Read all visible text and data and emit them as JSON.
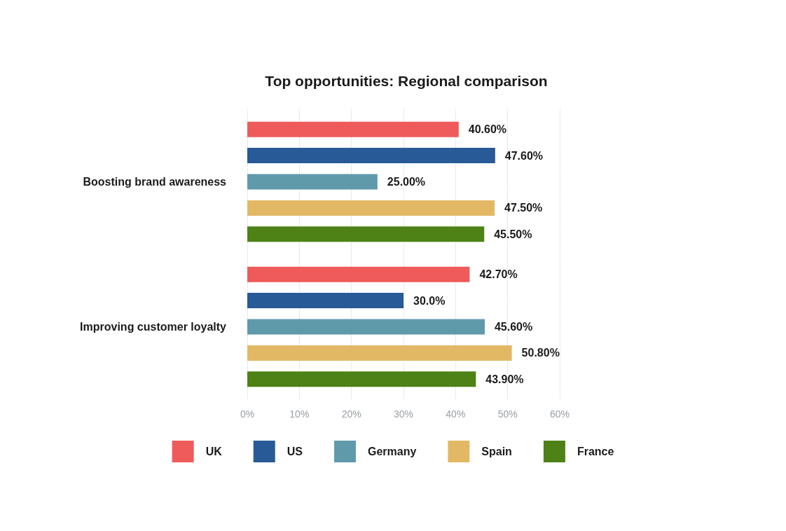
{
  "chart_data": {
    "type": "bar",
    "orientation": "horizontal",
    "title": "Top opportunities: Regional comparison",
    "categories": [
      "Boosting brand awareness",
      "Improving customer loyalty"
    ],
    "series": [
      {
        "name": "UK",
        "color": "#ef5a5a",
        "values": [
          40.6,
          42.7
        ],
        "value_labels": [
          "40.60%",
          "42.70%"
        ]
      },
      {
        "name": "US",
        "color": "#275a96",
        "values": [
          47.6,
          30.0
        ],
        "value_labels": [
          "47.60%",
          "30.0%"
        ]
      },
      {
        "name": "Germany",
        "color": "#5f9aab",
        "values": [
          25.0,
          45.6
        ],
        "value_labels": [
          "25.00%",
          "45.60%"
        ]
      },
      {
        "name": "Spain",
        "color": "#e3b865",
        "values": [
          47.5,
          50.8
        ],
        "value_labels": [
          "47.50%",
          "50.80%"
        ]
      },
      {
        "name": "France",
        "color": "#4e8216",
        "values": [
          45.5,
          43.9
        ],
        "value_labels": [
          "45.50%",
          "43.90%"
        ]
      }
    ],
    "xlim": [
      0,
      60
    ],
    "xticks": [
      {
        "value": 0,
        "label": "0%"
      },
      {
        "value": 10,
        "label": "10%"
      },
      {
        "value": 20,
        "label": "20%"
      },
      {
        "value": 30,
        "label": "30%"
      },
      {
        "value": 40,
        "label": "40%"
      },
      {
        "value": 50,
        "label": "50%"
      },
      {
        "value": 60,
        "label": "60%"
      }
    ],
    "grid": "x",
    "legend": "bottom"
  }
}
